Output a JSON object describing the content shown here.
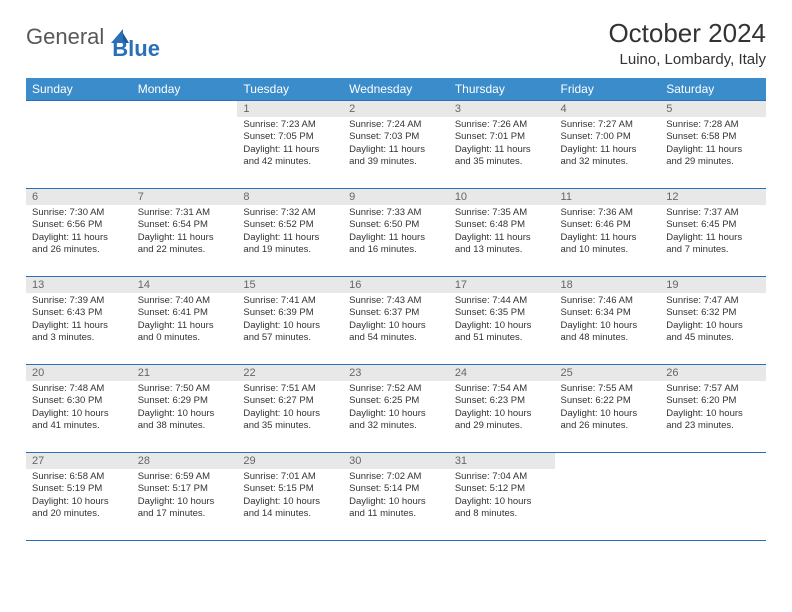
{
  "logo": {
    "text1": "General",
    "text2": "Blue"
  },
  "title": "October 2024",
  "location": "Luino, Lombardy, Italy",
  "colors": {
    "header_bg": "#3a8ccb",
    "header_text": "#ffffff",
    "border": "#2970b8",
    "daynum_bg": "#e8e8e8",
    "daynum_text": "#666666",
    "body_text": "#333333",
    "logo_gray": "#585858",
    "logo_blue": "#2970b8"
  },
  "day_headers": [
    "Sunday",
    "Monday",
    "Tuesday",
    "Wednesday",
    "Thursday",
    "Friday",
    "Saturday"
  ],
  "weeks": [
    [
      null,
      null,
      {
        "n": "1",
        "sr": "7:23 AM",
        "ss": "7:05 PM",
        "dl": "11 hours and 42 minutes."
      },
      {
        "n": "2",
        "sr": "7:24 AM",
        "ss": "7:03 PM",
        "dl": "11 hours and 39 minutes."
      },
      {
        "n": "3",
        "sr": "7:26 AM",
        "ss": "7:01 PM",
        "dl": "11 hours and 35 minutes."
      },
      {
        "n": "4",
        "sr": "7:27 AM",
        "ss": "7:00 PM",
        "dl": "11 hours and 32 minutes."
      },
      {
        "n": "5",
        "sr": "7:28 AM",
        "ss": "6:58 PM",
        "dl": "11 hours and 29 minutes."
      }
    ],
    [
      {
        "n": "6",
        "sr": "7:30 AM",
        "ss": "6:56 PM",
        "dl": "11 hours and 26 minutes."
      },
      {
        "n": "7",
        "sr": "7:31 AM",
        "ss": "6:54 PM",
        "dl": "11 hours and 22 minutes."
      },
      {
        "n": "8",
        "sr": "7:32 AM",
        "ss": "6:52 PM",
        "dl": "11 hours and 19 minutes."
      },
      {
        "n": "9",
        "sr": "7:33 AM",
        "ss": "6:50 PM",
        "dl": "11 hours and 16 minutes."
      },
      {
        "n": "10",
        "sr": "7:35 AM",
        "ss": "6:48 PM",
        "dl": "11 hours and 13 minutes."
      },
      {
        "n": "11",
        "sr": "7:36 AM",
        "ss": "6:46 PM",
        "dl": "11 hours and 10 minutes."
      },
      {
        "n": "12",
        "sr": "7:37 AM",
        "ss": "6:45 PM",
        "dl": "11 hours and 7 minutes."
      }
    ],
    [
      {
        "n": "13",
        "sr": "7:39 AM",
        "ss": "6:43 PM",
        "dl": "11 hours and 3 minutes."
      },
      {
        "n": "14",
        "sr": "7:40 AM",
        "ss": "6:41 PM",
        "dl": "11 hours and 0 minutes."
      },
      {
        "n": "15",
        "sr": "7:41 AM",
        "ss": "6:39 PM",
        "dl": "10 hours and 57 minutes."
      },
      {
        "n": "16",
        "sr": "7:43 AM",
        "ss": "6:37 PM",
        "dl": "10 hours and 54 minutes."
      },
      {
        "n": "17",
        "sr": "7:44 AM",
        "ss": "6:35 PM",
        "dl": "10 hours and 51 minutes."
      },
      {
        "n": "18",
        "sr": "7:46 AM",
        "ss": "6:34 PM",
        "dl": "10 hours and 48 minutes."
      },
      {
        "n": "19",
        "sr": "7:47 AM",
        "ss": "6:32 PM",
        "dl": "10 hours and 45 minutes."
      }
    ],
    [
      {
        "n": "20",
        "sr": "7:48 AM",
        "ss": "6:30 PM",
        "dl": "10 hours and 41 minutes."
      },
      {
        "n": "21",
        "sr": "7:50 AM",
        "ss": "6:29 PM",
        "dl": "10 hours and 38 minutes."
      },
      {
        "n": "22",
        "sr": "7:51 AM",
        "ss": "6:27 PM",
        "dl": "10 hours and 35 minutes."
      },
      {
        "n": "23",
        "sr": "7:52 AM",
        "ss": "6:25 PM",
        "dl": "10 hours and 32 minutes."
      },
      {
        "n": "24",
        "sr": "7:54 AM",
        "ss": "6:23 PM",
        "dl": "10 hours and 29 minutes."
      },
      {
        "n": "25",
        "sr": "7:55 AM",
        "ss": "6:22 PM",
        "dl": "10 hours and 26 minutes."
      },
      {
        "n": "26",
        "sr": "7:57 AM",
        "ss": "6:20 PM",
        "dl": "10 hours and 23 minutes."
      }
    ],
    [
      {
        "n": "27",
        "sr": "6:58 AM",
        "ss": "5:19 PM",
        "dl": "10 hours and 20 minutes."
      },
      {
        "n": "28",
        "sr": "6:59 AM",
        "ss": "5:17 PM",
        "dl": "10 hours and 17 minutes."
      },
      {
        "n": "29",
        "sr": "7:01 AM",
        "ss": "5:15 PM",
        "dl": "10 hours and 14 minutes."
      },
      {
        "n": "30",
        "sr": "7:02 AM",
        "ss": "5:14 PM",
        "dl": "10 hours and 11 minutes."
      },
      {
        "n": "31",
        "sr": "7:04 AM",
        "ss": "5:12 PM",
        "dl": "10 hours and 8 minutes."
      },
      null,
      null
    ]
  ],
  "labels": {
    "sunrise": "Sunrise:",
    "sunset": "Sunset:",
    "daylight": "Daylight:"
  }
}
